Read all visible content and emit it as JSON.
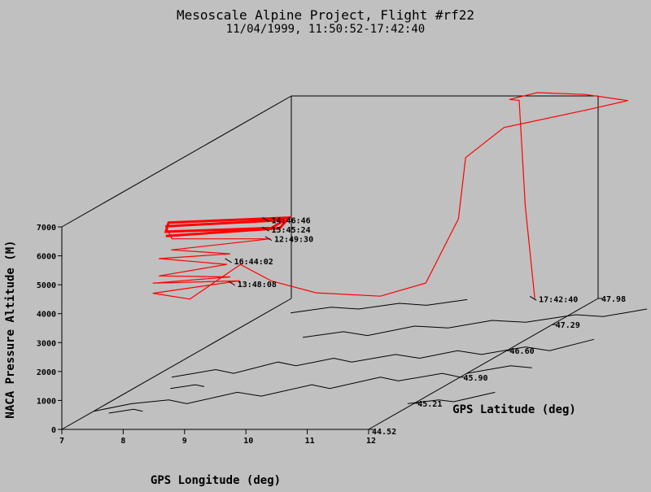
{
  "chart_data": {
    "type": "line",
    "title": "Mesoscale Alpine Project, Flight #rf22",
    "subtitle": "11/04/1999, 11:50:52-17:42:40",
    "xlabel": "GPS Longitude (deg)",
    "ylabel": "GPS Latitude (deg)",
    "zlabel": "NACA Pressure Altitude (M)",
    "x_ticks": [
      "7",
      "8",
      "9",
      "10",
      "11",
      "12"
    ],
    "y_ticks": [
      "44.52",
      "45.21",
      "45.90",
      "46.60",
      "47.29",
      "47.98"
    ],
    "z_ticks": [
      "0",
      "1000",
      "2000",
      "3000",
      "4000",
      "5000",
      "6000",
      "7000"
    ],
    "xlim": [
      7,
      12
    ],
    "ylim": [
      44.52,
      47.98
    ],
    "zlim": [
      0,
      7000
    ],
    "track_color": "#ff0000",
    "coastline_color": "#000000",
    "annotations": [
      {
        "label": "14:46:46",
        "lon": 10.1,
        "lat": 44.75,
        "alt": 6940
      },
      {
        "label": "15:45:24",
        "lon": 10.1,
        "lat": 44.75,
        "alt": 6610
      },
      {
        "label": "12:49:30",
        "lon": 10.2,
        "lat": 44.7,
        "alt": 6350
      },
      {
        "label": "16:44:02",
        "lon": 9.6,
        "lat": 44.65,
        "alt": 5650
      },
      {
        "label": "13:48:08",
        "lon": 9.6,
        "lat": 44.7,
        "alt": 4800
      },
      {
        "label": "17:42:40",
        "lon": 11.0,
        "lat": 47.95,
        "alt": 30
      }
    ],
    "series": [
      {
        "points": [
          [
            8.5,
            44.7,
            6450
          ],
          [
            10.3,
            44.75,
            6650
          ],
          [
            10.4,
            44.8,
            6950
          ],
          [
            8.6,
            44.65,
            6980
          ],
          [
            8.5,
            44.7,
            6600
          ],
          [
            10.2,
            44.72,
            6700
          ],
          [
            10.35,
            44.78,
            6900
          ],
          [
            8.55,
            44.65,
            6850
          ],
          [
            8.6,
            44.7,
            6350
          ],
          [
            10.2,
            44.7,
            6350
          ],
          [
            8.7,
            44.6,
            6100
          ],
          [
            9.6,
            44.65,
            5900
          ],
          [
            8.5,
            44.6,
            5800
          ],
          [
            9.6,
            44.6,
            5600
          ],
          [
            8.5,
            44.6,
            5200
          ],
          [
            9.6,
            44.65,
            5100
          ],
          [
            8.4,
            44.6,
            4950
          ],
          [
            9.7,
            44.7,
            4900
          ],
          [
            8.4,
            44.6,
            4600
          ],
          [
            9.0,
            44.6,
            4400
          ],
          [
            9.5,
            44.9,
            5200
          ],
          [
            9.9,
            45.0,
            4500
          ],
          [
            10.3,
            45.3,
            3700
          ],
          [
            10.7,
            45.9,
            2800
          ],
          [
            10.9,
            46.4,
            2600
          ],
          [
            11.0,
            46.8,
            4300
          ],
          [
            10.9,
            47.0,
            6150
          ],
          [
            11.2,
            47.3,
            6800
          ],
          [
            12.3,
            47.6,
            7050
          ],
          [
            12.7,
            47.78,
            7100
          ],
          [
            12.0,
            47.79,
            7300
          ],
          [
            11.2,
            47.8,
            7350
          ],
          [
            10.7,
            47.85,
            7050
          ],
          [
            10.8,
            47.9,
            6950
          ],
          [
            10.9,
            47.9,
            3300
          ],
          [
            11.0,
            47.95,
            30
          ]
        ]
      }
    ]
  }
}
